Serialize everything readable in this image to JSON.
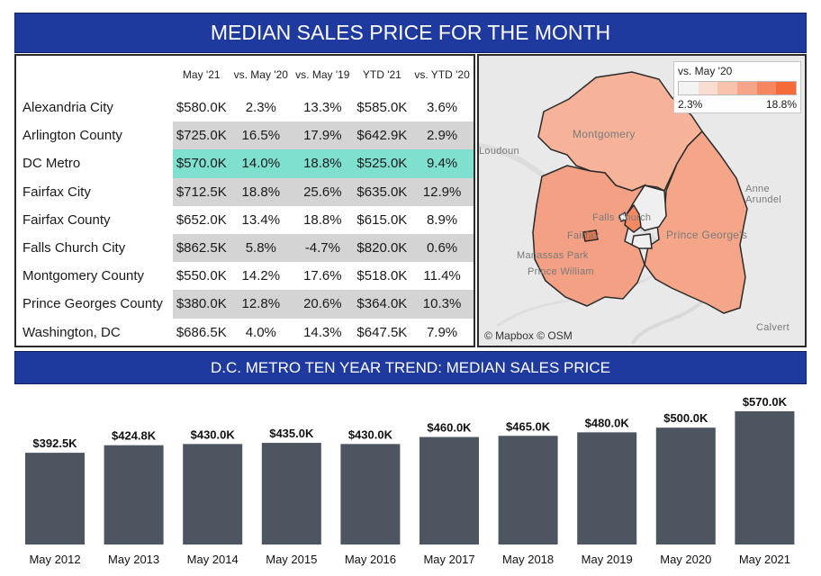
{
  "header": {
    "title": "MEDIAN SALES PRICE FOR THE MONTH"
  },
  "table": {
    "columns": [
      "",
      "May '21",
      "vs. May '20",
      "vs. May '19",
      "YTD '21",
      "vs. YTD '20"
    ],
    "rows": [
      {
        "name": "Alexandria City",
        "may21": "$580.0K",
        "vs_may20": "2.3%",
        "vs_may19": "13.3%",
        "ytd21": "$585.0K",
        "vs_ytd20": "3.6%"
      },
      {
        "name": "Arlington County",
        "may21": "$725.0K",
        "vs_may20": "16.5%",
        "vs_may19": "17.9%",
        "ytd21": "$642.9K",
        "vs_ytd20": "2.9%"
      },
      {
        "name": "DC Metro",
        "may21": "$570.0K",
        "vs_may20": "14.0%",
        "vs_may19": "18.8%",
        "ytd21": "$525.0K",
        "vs_ytd20": "9.4%"
      },
      {
        "name": "Fairfax City",
        "may21": "$712.5K",
        "vs_may20": "18.8%",
        "vs_may19": "25.6%",
        "ytd21": "$635.0K",
        "vs_ytd20": "12.9%"
      },
      {
        "name": "Fairfax County",
        "may21": "$652.0K",
        "vs_may20": "13.4%",
        "vs_may19": "18.8%",
        "ytd21": "$615.0K",
        "vs_ytd20": "8.9%"
      },
      {
        "name": "Falls Church City",
        "may21": "$862.5K",
        "vs_may20": "5.8%",
        "vs_may19": "-4.7%",
        "ytd21": "$820.0K",
        "vs_ytd20": "0.6%"
      },
      {
        "name": "Montgomery County",
        "may21": "$550.0K",
        "vs_may20": "14.2%",
        "vs_may19": "17.6%",
        "ytd21": "$518.0K",
        "vs_ytd20": "11.4%"
      },
      {
        "name": "Prince Georges County",
        "may21": "$380.0K",
        "vs_may20": "12.8%",
        "vs_may19": "20.6%",
        "ytd21": "$364.0K",
        "vs_ytd20": "10.3%"
      },
      {
        "name": "Washington, DC",
        "may21": "$686.5K",
        "vs_may20": "4.0%",
        "vs_may19": "14.3%",
        "ytd21": "$647.5K",
        "vs_ytd20": "7.9%"
      }
    ],
    "highlight_color": "#7fe0cf",
    "shade_color": "#d4d4d4"
  },
  "map": {
    "legend_title": "vs. May '20",
    "legend_min": "2.3%",
    "legend_max": "18.8%",
    "legend_colors": [
      "#f3f3f3",
      "#f9ddd2",
      "#f8c2ad",
      "#f6a487",
      "#f58660",
      "#f46a39"
    ],
    "places": {
      "montgomery": "Montgomery",
      "loudoun": "Loudoun",
      "anne_arundel": "Anne Arundel",
      "falls_church": "Falls Church",
      "fairfax": "Fairfax",
      "prince_georges": "Prince George's",
      "manassas_park": "Manassas Park",
      "prince_william": "Prince William",
      "calvert": "Calvert"
    },
    "credit": "© Mapbox © OSM"
  },
  "trend": {
    "title": "D.C. METRO TEN YEAR TREND: MEDIAN SALES PRICE",
    "bar_color": "#4d5560"
  },
  "chart_data": {
    "type": "bar",
    "categories": [
      "May 2012",
      "May 2013",
      "May 2014",
      "May 2015",
      "May 2016",
      "May 2017",
      "May 2018",
      "May 2019",
      "May 2020",
      "May 2021"
    ],
    "values": [
      392.5,
      424.8,
      430.0,
      435.0,
      430.0,
      460.0,
      465.0,
      480.0,
      500.0,
      570.0
    ],
    "labels": [
      "$392.5K",
      "$424.8K",
      "$430.0K",
      "$435.0K",
      "$430.0K",
      "$460.0K",
      "$465.0K",
      "$480.0K",
      "$500.0K",
      "$570.0K"
    ],
    "title": "D.C. METRO TEN YEAR TREND: MEDIAN SALES PRICE",
    "xlabel": "",
    "ylabel": "",
    "ylim": [
      0,
      570
    ]
  }
}
